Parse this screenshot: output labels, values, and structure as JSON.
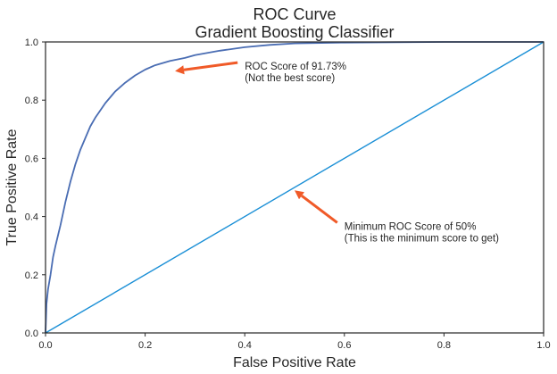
{
  "chart_data": {
    "type": "line",
    "title": "ROC Curve\nGradient Boosting Classifier",
    "title_lines": [
      "ROC Curve",
      "Gradient Boosting Classifier"
    ],
    "xlabel": "False Positive Rate",
    "ylabel": "True Positive Rate",
    "xlim": [
      0,
      1
    ],
    "ylim": [
      0,
      1
    ],
    "xticks": [
      "0.0",
      "0.2",
      "0.4",
      "0.6",
      "0.8",
      "1.0"
    ],
    "yticks": [
      "0.0",
      "0.2",
      "0.4",
      "0.6",
      "0.8",
      "1.0"
    ],
    "grid": false,
    "series": [
      {
        "color": "#4a6db3",
        "x": [
          0,
          0.002,
          0.005,
          0.01,
          0.015,
          0.02,
          0.03,
          0.04,
          0.05,
          0.06,
          0.07,
          0.08,
          0.09,
          0.1,
          0.12,
          0.14,
          0.16,
          0.18,
          0.2,
          0.22,
          0.25,
          0.28,
          0.3,
          0.35,
          0.4,
          0.45,
          0.5,
          0.6,
          0.7,
          0.8,
          0.9,
          1.0
        ],
        "y": [
          0,
          0.1,
          0.15,
          0.2,
          0.26,
          0.3,
          0.37,
          0.45,
          0.52,
          0.58,
          0.63,
          0.67,
          0.71,
          0.74,
          0.79,
          0.83,
          0.86,
          0.885,
          0.905,
          0.92,
          0.935,
          0.945,
          0.955,
          0.97,
          0.982,
          0.99,
          0.995,
          0.998,
          0.999,
          1.0,
          1.0,
          1.0
        ]
      },
      {
        "color": "#1a8fd6",
        "x": [
          0,
          1
        ],
        "y": [
          0,
          1
        ]
      }
    ],
    "annotations": [
      {
        "text_lines": [
          "ROC Score of 91.73%",
          " (Not the best score)"
        ],
        "arrow_color": "#f05a28",
        "point": [
          0.26,
          0.9
        ],
        "text_pos": [
          0.4,
          0.88
        ]
      },
      {
        "text_lines": [
          "Minimum ROC Score of 50%",
          " (This is the minimum score to get)"
        ],
        "arrow_color": "#f05a28",
        "point": [
          0.5,
          0.49
        ],
        "text_pos": [
          0.6,
          0.33
        ]
      }
    ]
  }
}
